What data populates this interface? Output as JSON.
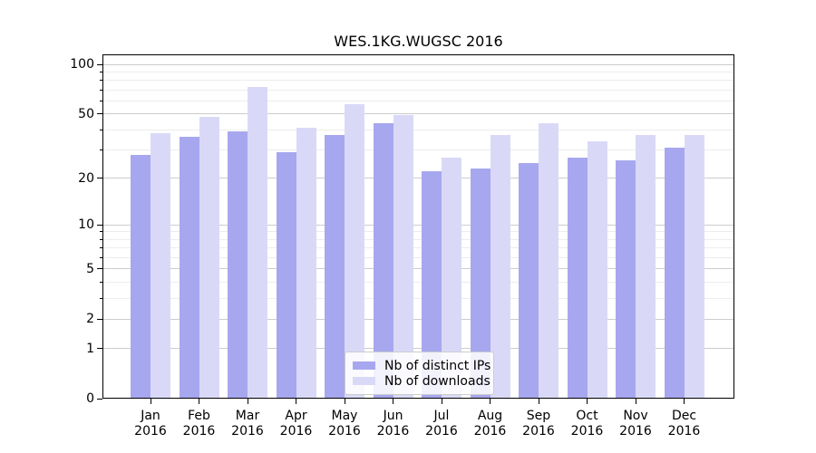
{
  "chart_data": {
    "type": "bar",
    "title": "WES.1KG.WUGSC 2016",
    "categories": [
      "Jan",
      "Feb",
      "Mar",
      "Apr",
      "May",
      "Jun",
      "Jul",
      "Aug",
      "Sep",
      "Oct",
      "Nov",
      "Dec"
    ],
    "year_label": "2016",
    "series": [
      {
        "name": "Nb of distinct IPs",
        "color": "#a7a7ef",
        "values": [
          28,
          36,
          39,
          29,
          37,
          44,
          22,
          23,
          25,
          27,
          26,
          31
        ]
      },
      {
        "name": "Nb of downloads",
        "color": "#d9d9f7",
        "values": [
          38,
          48,
          73,
          41,
          57,
          49,
          27,
          37,
          44,
          34,
          37,
          37
        ]
      }
    ],
    "yscale": "log1p",
    "ylim": [
      0,
      115
    ],
    "yticks_major": [
      100,
      50,
      20,
      10,
      5,
      2,
      1,
      0
    ],
    "yticks_minor": [
      3,
      4,
      6,
      7,
      8,
      9,
      30,
      40,
      60,
      70,
      80,
      90
    ],
    "grid": "on",
    "legend_position": "lower center",
    "xlabel": "",
    "ylabel": ""
  },
  "colors": {
    "background": "#ffffff",
    "axis_border": "#000000",
    "grid_major": "#cccccc",
    "grid_minor": "#ececec",
    "tick_text": "#000000"
  }
}
